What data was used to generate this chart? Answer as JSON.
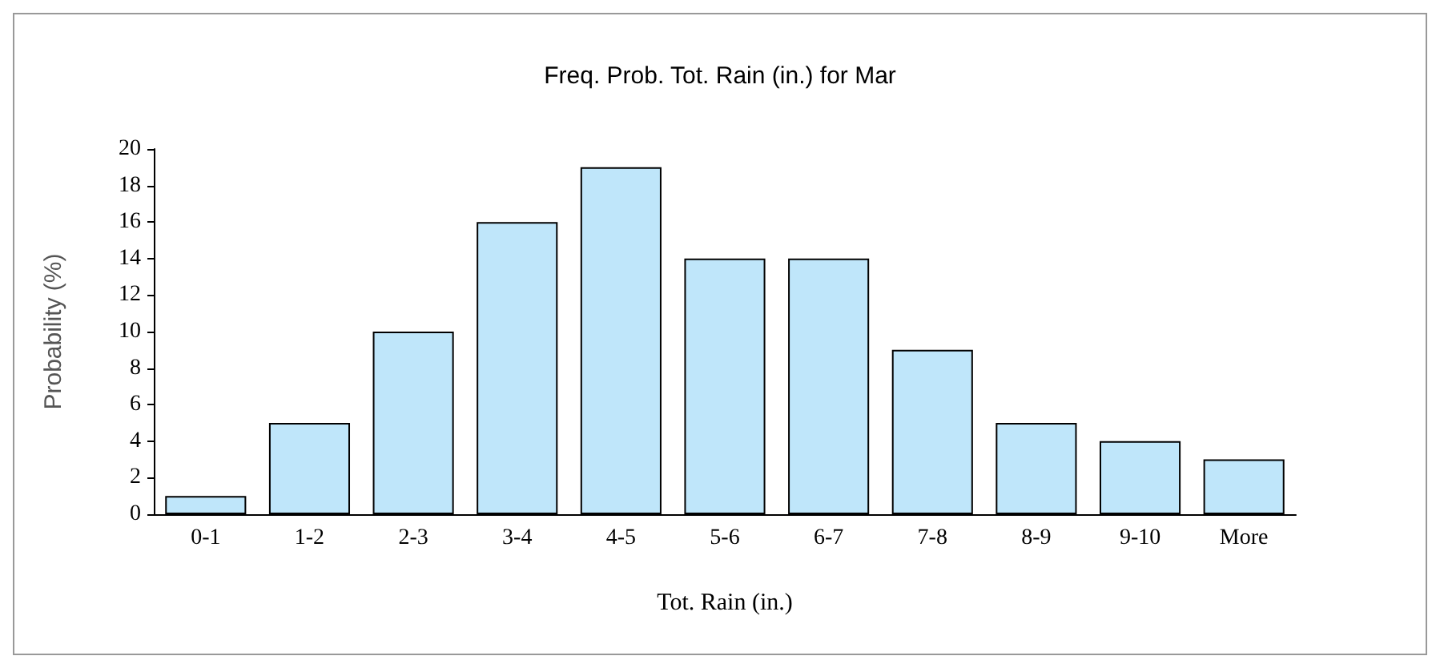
{
  "chart_data": {
    "type": "bar",
    "title": "Freq. Prob. Tot. Rain (in.) for Mar",
    "xlabel": "Tot. Rain (in.)",
    "ylabel": "Probability (%)",
    "categories": [
      "0-1",
      "1-2",
      "2-3",
      "3-4",
      "4-5",
      "5-6",
      "6-7",
      "7-8",
      "8-9",
      "9-10",
      "More"
    ],
    "values": [
      1,
      5,
      10,
      16,
      19,
      14,
      14,
      9,
      5,
      4,
      3
    ],
    "color": "#bfe6fa",
    "ylim": [
      0,
      20
    ],
    "yticks": [
      0,
      2,
      4,
      6,
      8,
      10,
      12,
      14,
      16,
      18,
      20
    ],
    "grid": false
  }
}
